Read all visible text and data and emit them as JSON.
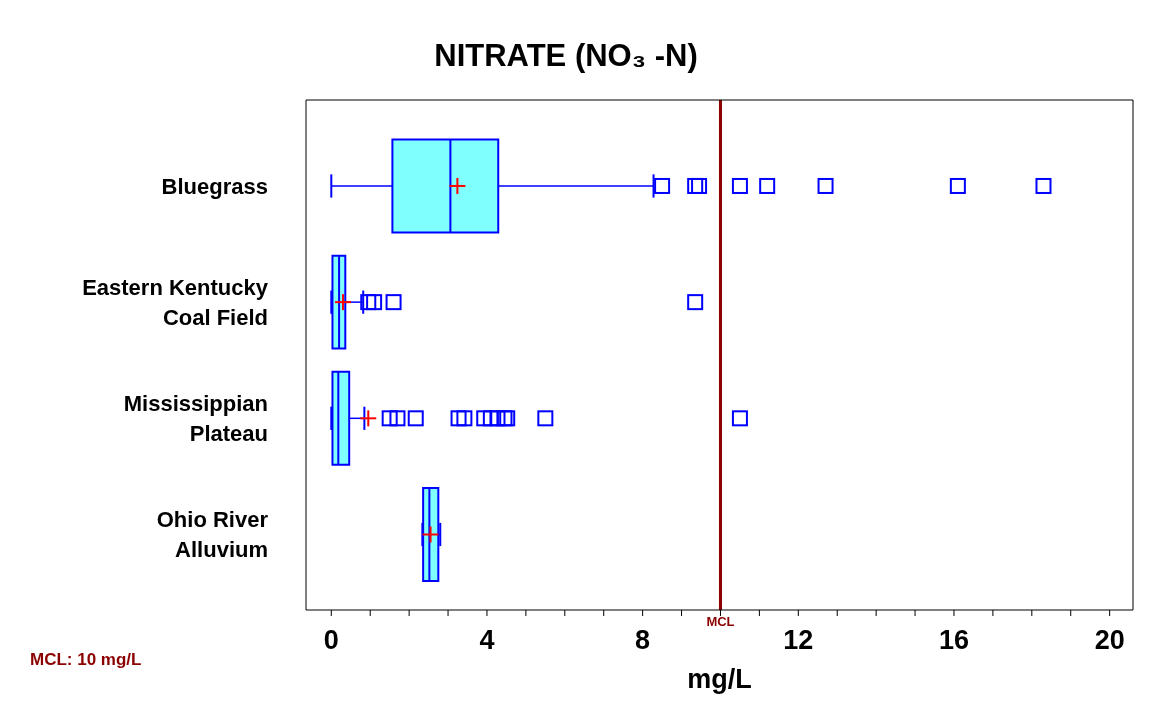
{
  "chart_data": {
    "type": "box",
    "orientation": "horizontal",
    "title": "NITRATE (NO₃ -N)",
    "xlabel": "mg/L",
    "categories": [
      "Bluegrass",
      "Eastern Kentucky Coal Field",
      "Mississippian Plateau",
      "Ohio River Alluvium"
    ],
    "color": "#80ffff",
    "marker": "square",
    "boxes": [
      {
        "low": 0,
        "q1": 1.57,
        "median": 3.06,
        "q3": 4.29,
        "high": 8.28,
        "mean": 3.24,
        "outliers": [
          8.5,
          9.35,
          9.45,
          10.5,
          11.2,
          12.7,
          16.1,
          18.3
        ]
      },
      {
        "low": 0,
        "q1": 0.03,
        "median": 0.2,
        "q3": 0.36,
        "high": 0.82,
        "mean": 0.3,
        "outliers": [
          0.95,
          1.1,
          1.6,
          9.35
        ]
      },
      {
        "low": 0,
        "q1": 0.03,
        "median": 0.18,
        "q3": 0.46,
        "high": 0.85,
        "mean": 0.95,
        "outliers": [
          1.5,
          1.7,
          2.17,
          3.27,
          3.42,
          3.93,
          4.1,
          4.27,
          4.45,
          4.52,
          5.5,
          10.5
        ]
      },
      {
        "low": 2.34,
        "q1": 2.36,
        "median": 2.52,
        "q3": 2.75,
        "high": 2.8,
        "mean": 2.55
      }
    ],
    "xlim": [
      -0.65,
      20.6
    ],
    "xticks": [
      0,
      {
        "value": 1,
        "label": null
      },
      {
        "value": 2,
        "label": null
      },
      {
        "value": 3,
        "label": null
      },
      4,
      {
        "value": 5,
        "label": null
      },
      {
        "value": 6,
        "label": null
      },
      {
        "value": 7,
        "label": null
      },
      8,
      {
        "value": 9,
        "label": null
      },
      {
        "value": 10,
        "label": null
      },
      {
        "value": 11,
        "label": null
      },
      12,
      {
        "value": 13,
        "label": null
      },
      {
        "value": 14,
        "label": null
      },
      {
        "value": 15,
        "label": null
      },
      16,
      {
        "value": 17,
        "label": null
      },
      {
        "value": 18,
        "label": null
      },
      {
        "value": 19,
        "label": null
      },
      20
    ],
    "ref_lines": [
      {
        "axis": "x",
        "value": 10,
        "label": "MCL",
        "color": "#8b0000"
      }
    ],
    "annotations": [
      "MCL: 10 mg/L"
    ]
  }
}
